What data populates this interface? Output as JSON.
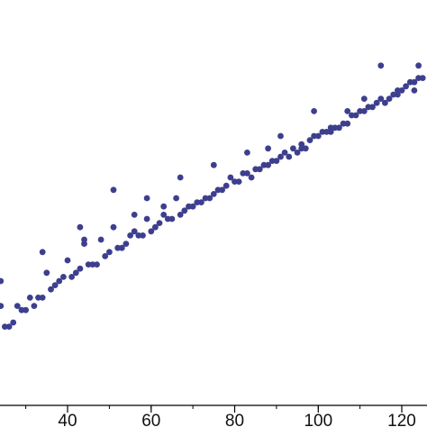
{
  "chart_data": {
    "type": "scatter",
    "title": "",
    "xlabel": "",
    "ylabel": "",
    "xlim": [
      20,
      126
    ],
    "ylim": [
      0,
      100
    ],
    "x_ticks": [
      40,
      60,
      80,
      100,
      120
    ],
    "grid": false,
    "colors": {
      "points": "#3d3f8e",
      "axis": "#000000"
    },
    "series": [
      {
        "values": [
          [
            21,
            14
          ],
          [
            22,
            17
          ],
          [
            23,
            17
          ],
          [
            24,
            24
          ],
          [
            25,
            19
          ],
          [
            26,
            19
          ],
          [
            27,
            20
          ],
          [
            28,
            24
          ],
          [
            29,
            23
          ],
          [
            30,
            23
          ],
          [
            31,
            26
          ],
          [
            32,
            24
          ],
          [
            33,
            26
          ],
          [
            34,
            26
          ],
          [
            35,
            32
          ],
          [
            36,
            28
          ],
          [
            37,
            29
          ],
          [
            38,
            30
          ],
          [
            39,
            31
          ],
          [
            40,
            35
          ],
          [
            41,
            31
          ],
          [
            42,
            32
          ],
          [
            43,
            33
          ],
          [
            44,
            39
          ],
          [
            45,
            34
          ],
          [
            46,
            34
          ],
          [
            47,
            34
          ],
          [
            48,
            40
          ],
          [
            49,
            36
          ],
          [
            50,
            37
          ],
          [
            51,
            43
          ],
          [
            52,
            38
          ],
          [
            53,
            38
          ],
          [
            54,
            39
          ],
          [
            55,
            41
          ],
          [
            56,
            42
          ],
          [
            57,
            41
          ],
          [
            58,
            41
          ],
          [
            59,
            45
          ],
          [
            60,
            42
          ],
          [
            61,
            43
          ],
          [
            62,
            44
          ],
          [
            63,
            46
          ],
          [
            64,
            45
          ],
          [
            65,
            45
          ],
          [
            66,
            50
          ],
          [
            67,
            46
          ],
          [
            68,
            47
          ],
          [
            69,
            48
          ],
          [
            70,
            48
          ],
          [
            71,
            49
          ],
          [
            72,
            49
          ],
          [
            73,
            50
          ],
          [
            74,
            50
          ],
          [
            75,
            51
          ],
          [
            76,
            52
          ],
          [
            77,
            52
          ],
          [
            78,
            53
          ],
          [
            79,
            55
          ],
          [
            80,
            54
          ],
          [
            81,
            54
          ],
          [
            82,
            56
          ],
          [
            83,
            56
          ],
          [
            84,
            55
          ],
          [
            85,
            57
          ],
          [
            86,
            57
          ],
          [
            87,
            58
          ],
          [
            88,
            58
          ],
          [
            89,
            59
          ],
          [
            90,
            59
          ],
          [
            91,
            60
          ],
          [
            92,
            61
          ],
          [
            93,
            60
          ],
          [
            94,
            62
          ],
          [
            95,
            61
          ],
          [
            96,
            63
          ],
          [
            97,
            62
          ],
          [
            98,
            64
          ],
          [
            99,
            65
          ],
          [
            100,
            65
          ],
          [
            101,
            66
          ],
          [
            102,
            66
          ],
          [
            103,
            66
          ],
          [
            104,
            67
          ],
          [
            105,
            67
          ],
          [
            106,
            68
          ],
          [
            107,
            68
          ],
          [
            108,
            70
          ],
          [
            109,
            70
          ],
          [
            110,
            71
          ],
          [
            111,
            71
          ],
          [
            112,
            72
          ],
          [
            113,
            72
          ],
          [
            114,
            73
          ],
          [
            115,
            74
          ],
          [
            116,
            73
          ],
          [
            117,
            74
          ],
          [
            118,
            75
          ],
          [
            119,
            75
          ],
          [
            120,
            76
          ],
          [
            121,
            77
          ],
          [
            122,
            78
          ],
          [
            123,
            78
          ],
          [
            124,
            79
          ],
          [
            125,
            79
          ],
          [
            24,
            30
          ],
          [
            34,
            37
          ],
          [
            43,
            43
          ],
          [
            51,
            52
          ],
          [
            59,
            50
          ],
          [
            67,
            55
          ],
          [
            75,
            58
          ],
          [
            83,
            61
          ],
          [
            91,
            65
          ],
          [
            99,
            71
          ],
          [
            107,
            71
          ],
          [
            115,
            82
          ],
          [
            123,
            76
          ],
          [
            44,
            40
          ],
          [
            56,
            46
          ],
          [
            63,
            48
          ],
          [
            88,
            62
          ],
          [
            96,
            62
          ],
          [
            103,
            67
          ],
          [
            111,
            74
          ],
          [
            119,
            76
          ],
          [
            124,
            82
          ]
        ]
      }
    ]
  }
}
